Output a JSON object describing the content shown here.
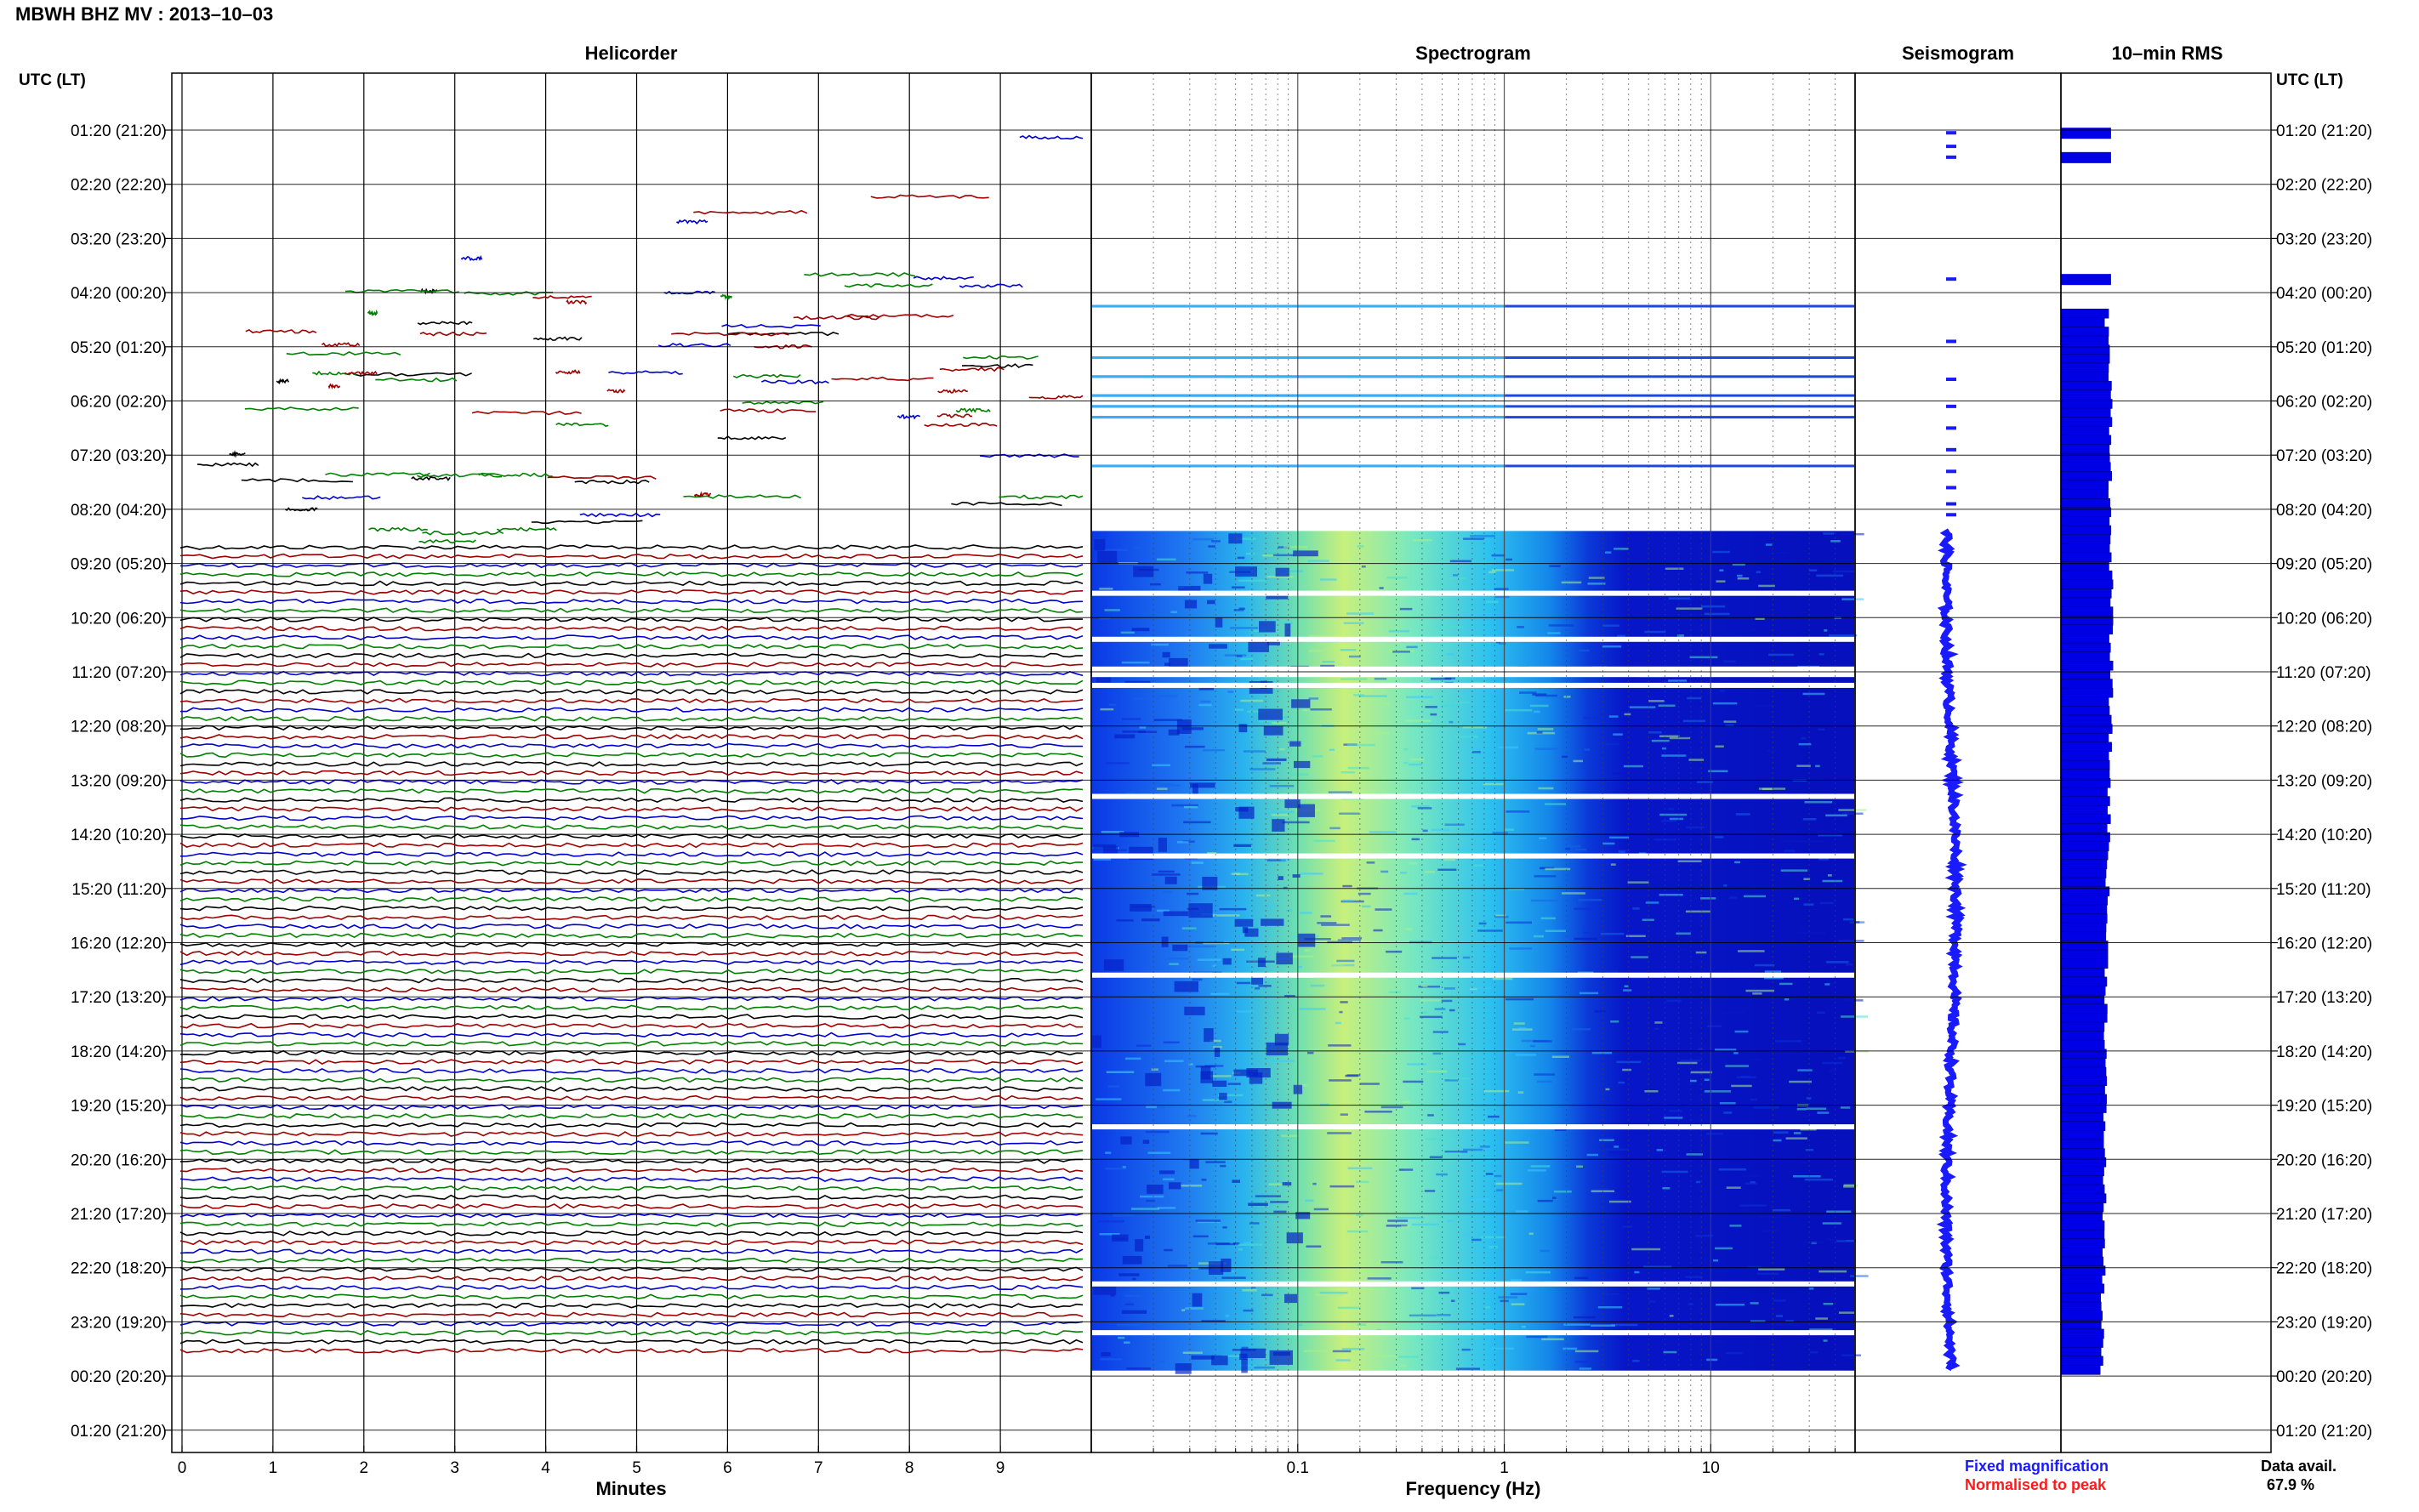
{
  "chart_data": {
    "type": "heatmap",
    "title": "MBWH BHZ MV : 2013–10–03",
    "header_utc": "UTC (LT)",
    "header_utc_right": "UTC (LT)",
    "row_labels": [
      "01:20 (21:20)",
      "02:20 (22:20)",
      "03:20 (23:20)",
      "04:20 (00:20)",
      "05:20 (01:20)",
      "06:20 (02:20)",
      "07:20 (03:20)",
      "08:20 (04:20)",
      "09:20 (05:20)",
      "10:20 (06:20)",
      "11:20 (07:20)",
      "12:20 (08:20)",
      "13:20 (09:20)",
      "14:20 (10:20)",
      "15:20 (11:20)",
      "16:20 (12:20)",
      "17:20 (13:20)",
      "18:20 (14:20)",
      "19:20 (15:20)",
      "20:20 (16:20)",
      "21:20 (17:20)",
      "22:20 (18:20)",
      "23:20 (19:20)",
      "00:20 (20:20)",
      "01:20 (21:20)"
    ],
    "panels": {
      "helicorder": {
        "title": "Helicorder",
        "xlabel": "Minutes",
        "x_ticks": [
          "0",
          "1",
          "2",
          "3",
          "4",
          "5",
          "6",
          "7",
          "8",
          "9"
        ],
        "xlim": [
          0,
          10
        ],
        "trace_colors": [
          "#000000",
          "#9c0000",
          "#0000cc",
          "#008000"
        ],
        "dense_from_hour": 7.7,
        "dense_to_hour": 22.7
      },
      "spectrogram": {
        "title": "Spectrogram",
        "xlabel": "Frequency (Hz)",
        "x_ticks": [
          "0.1",
          "1",
          "10"
        ],
        "x_tick_values": [
          0.1,
          1,
          10
        ],
        "xscale": "log",
        "xlim": [
          0.01,
          50
        ],
        "data_from_hour": 7.4,
        "data_to_hour": 22.9,
        "isolated_lines_hours": [
          3.25,
          4.2,
          4.55,
          4.9,
          5.1,
          5.3,
          6.2
        ],
        "gap_hours": [
          8.55,
          9.4,
          9.95,
          10.05,
          10.25,
          12.3,
          13.4,
          15.6,
          18.4,
          21.3,
          22.2
        ]
      },
      "seismogram": {
        "title": "Seismogram",
        "legend": [
          {
            "label": "Fixed magnification",
            "color": "#1a1aff"
          },
          {
            "label": "Normalised to peak",
            "color": "#ff1a1a"
          }
        ]
      },
      "rms": {
        "title": "10–min RMS",
        "bar_color": "#0000e6",
        "data_availability_label": "Data avail.",
        "data_availability_value": "67.9 %",
        "values_by_hour": [
          {
            "hour": 0.0,
            "value": 0.95
          },
          {
            "hour": 0.2,
            "value": 0.95
          },
          {
            "hour": 0.5,
            "value": 0.95
          },
          {
            "hour": 2.7,
            "value": 0.9
          },
          {
            "hour": 3.25,
            "value": 0.88
          },
          {
            "hour": 3.4,
            "value": 0.85
          },
          {
            "hour": 3.6,
            "value": 0.9
          },
          {
            "hour": 4.0,
            "value": 0.9
          },
          {
            "hour": 4.5,
            "value": 0.92
          },
          {
            "hour": 5.0,
            "value": 0.95
          },
          {
            "hour": 6.0,
            "value": 0.95
          },
          {
            "hour": 7.0,
            "value": 0.92
          },
          {
            "hour": 8.0,
            "value": 0.95
          },
          {
            "hour": 10.0,
            "value": 0.95
          },
          {
            "hour": 12.0,
            "value": 0.92
          },
          {
            "hour": 14.0,
            "value": 0.88
          },
          {
            "hour": 16.0,
            "value": 0.86
          },
          {
            "hour": 18.0,
            "value": 0.83
          },
          {
            "hour": 20.0,
            "value": 0.82
          },
          {
            "hour": 22.0,
            "value": 0.78
          },
          {
            "hour": 22.9,
            "value": 0.76
          }
        ]
      }
    }
  }
}
